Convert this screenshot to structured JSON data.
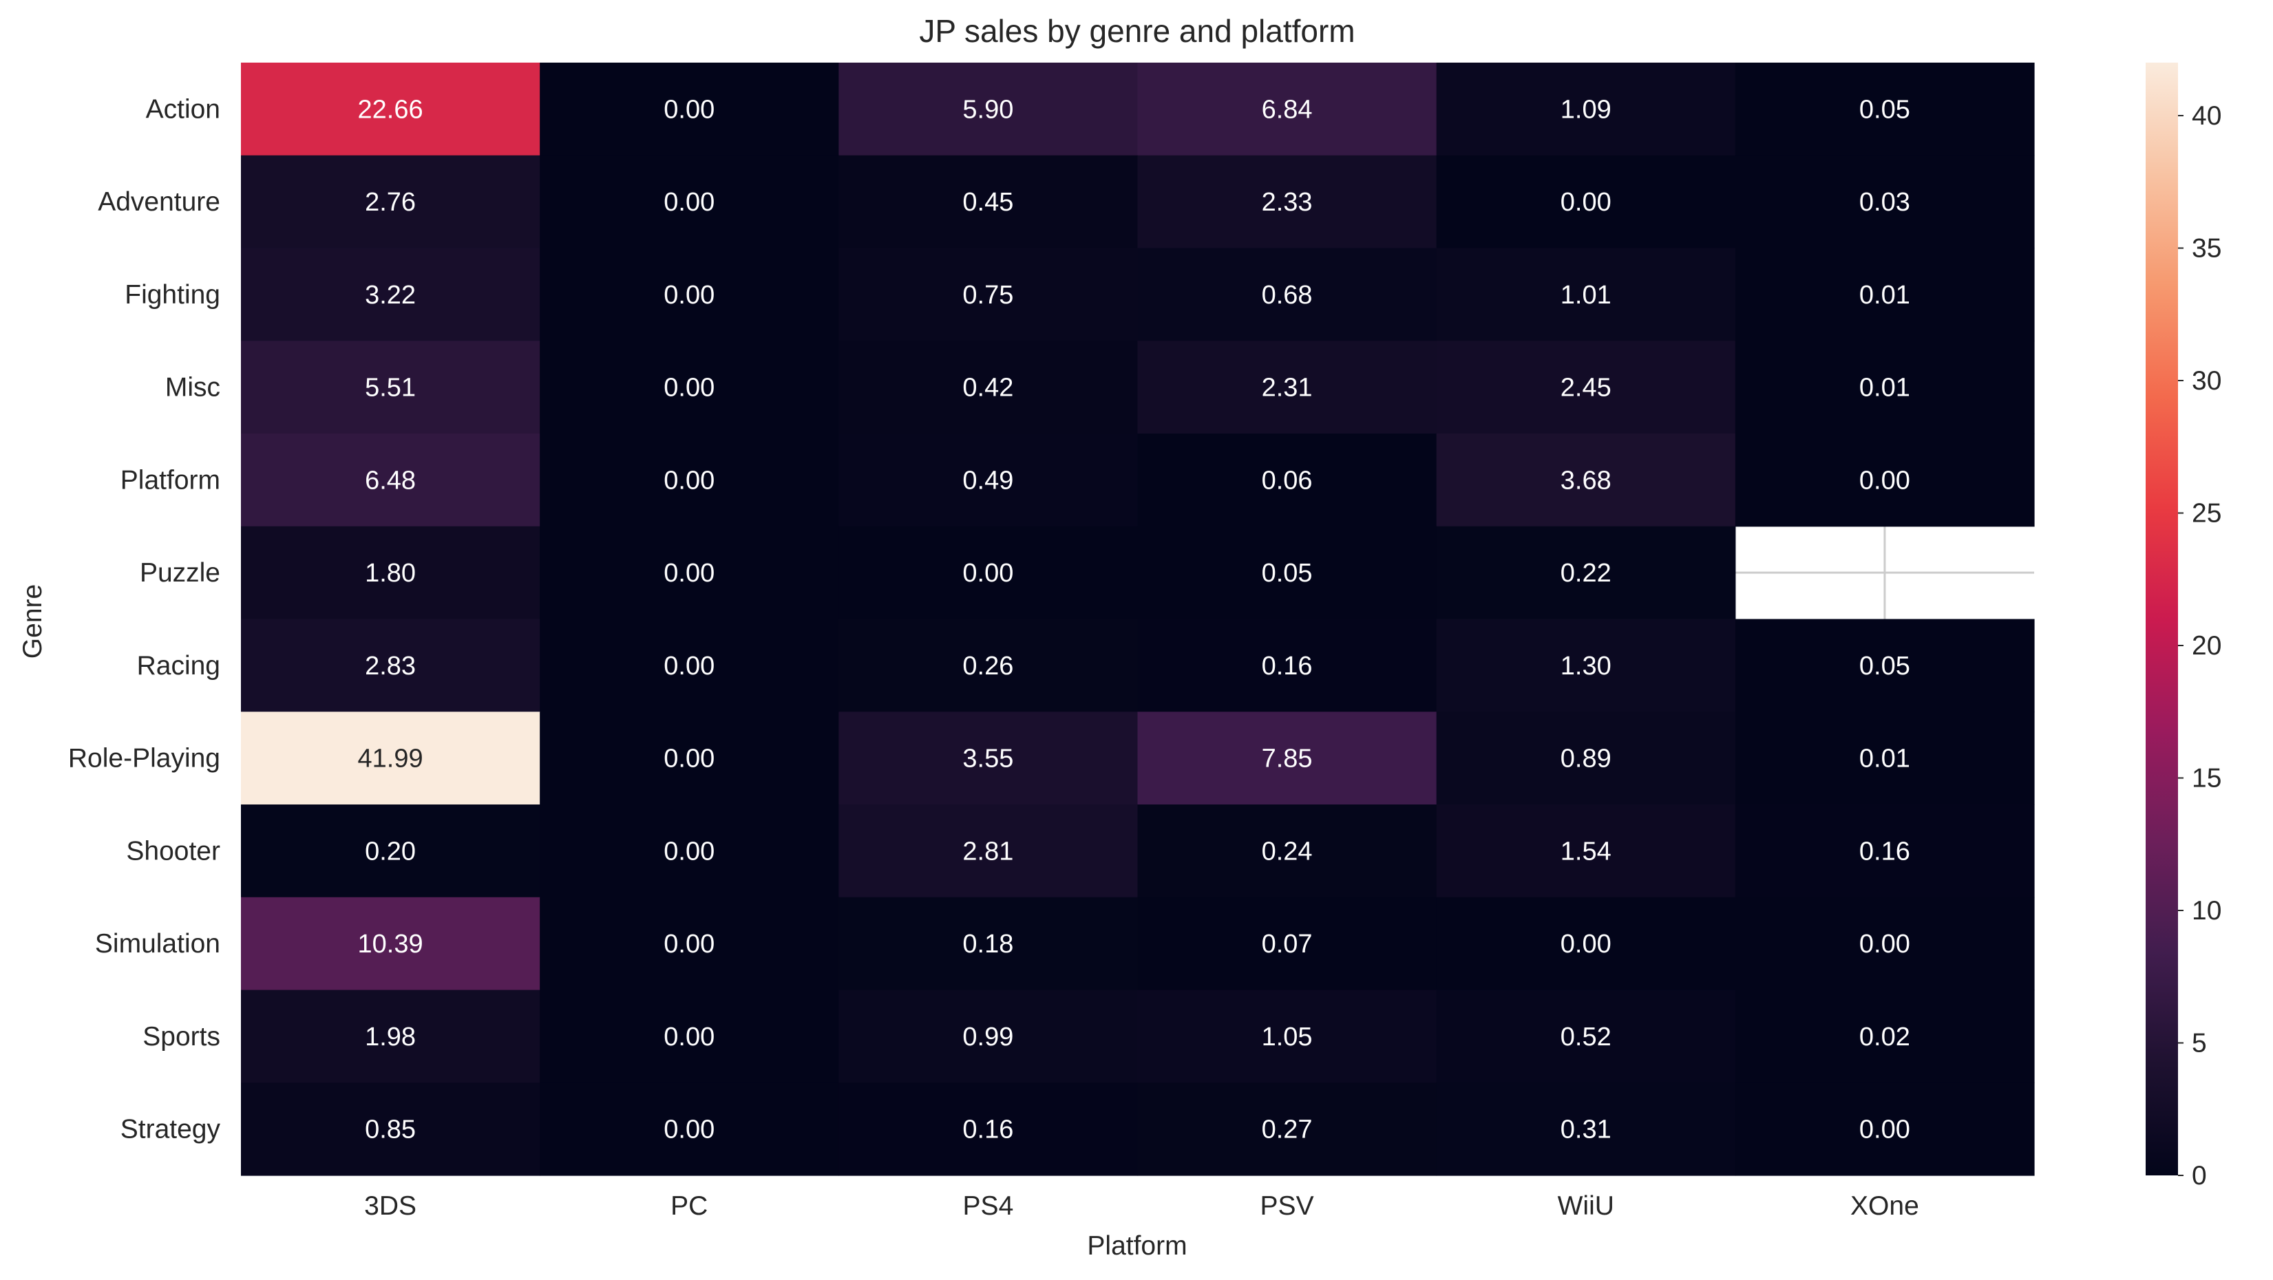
{
  "chart_data": {
    "type": "heatmap",
    "title": "JP sales by genre and platform",
    "xlabel": "Platform",
    "ylabel": "Genre",
    "x_categories": [
      "3DS",
      "PC",
      "PS4",
      "PSV",
      "WiiU",
      "XOne"
    ],
    "y_categories": [
      "Action",
      "Adventure",
      "Fighting",
      "Misc",
      "Platform",
      "Puzzle",
      "Racing",
      "Role-Playing",
      "Shooter",
      "Simulation",
      "Sports",
      "Strategy"
    ],
    "values": [
      [
        22.66,
        0.0,
        5.9,
        6.84,
        1.09,
        0.05
      ],
      [
        2.76,
        0.0,
        0.45,
        2.33,
        0.0,
        0.03
      ],
      [
        3.22,
        0.0,
        0.75,
        0.68,
        1.01,
        0.01
      ],
      [
        5.51,
        0.0,
        0.42,
        2.31,
        2.45,
        0.01
      ],
      [
        6.48,
        0.0,
        0.49,
        0.06,
        3.68,
        0.0
      ],
      [
        1.8,
        0.0,
        0.0,
        0.05,
        0.22,
        null
      ],
      [
        2.83,
        0.0,
        0.26,
        0.16,
        1.3,
        0.05
      ],
      [
        41.99,
        0.0,
        3.55,
        7.85,
        0.89,
        0.01
      ],
      [
        0.2,
        0.0,
        2.81,
        0.24,
        1.54,
        0.16
      ],
      [
        10.39,
        0.0,
        0.18,
        0.07,
        0.0,
        0.0
      ],
      [
        1.98,
        0.0,
        0.99,
        1.05,
        0.52,
        0.02
      ],
      [
        0.85,
        0.0,
        0.16,
        0.27,
        0.31,
        0.0
      ]
    ],
    "value_format": "0.00",
    "colormap": "rocket",
    "colorbar": {
      "range": [
        0,
        42
      ],
      "ticks": [
        0,
        5,
        10,
        15,
        20,
        25,
        30,
        35,
        40
      ]
    },
    "missing_cell_color": "#ffffff",
    "grid": true
  }
}
